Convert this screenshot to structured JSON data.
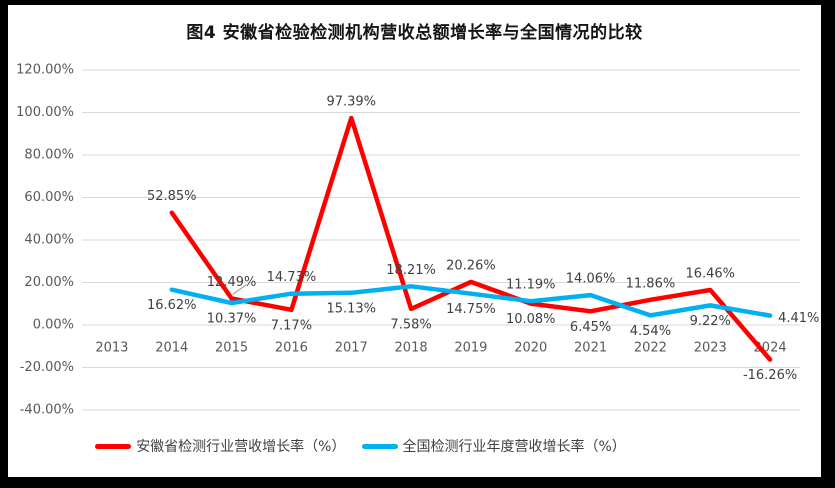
{
  "page": {
    "frame_color": "#000000",
    "canvas_background": "#ffffff"
  },
  "title": "图4 安徽省检验检测机构营收总额增长率与全国情况的比较",
  "chart_data": {
    "type": "line",
    "title": "图4 安徽省检验检测机构营收总额增长率与全国情况的比较",
    "categories": [
      "2013",
      "2014",
      "2015",
      "2016",
      "2017",
      "2018",
      "2019",
      "2020",
      "2021",
      "2022",
      "2023",
      "2024"
    ],
    "series": [
      {
        "name": "安徽省检测行业营收增长率（%）",
        "color": "#FF0000",
        "values": [
          null,
          52.85,
          12.49,
          7.17,
          97.39,
          7.58,
          20.26,
          10.08,
          6.45,
          11.86,
          16.46,
          -16.26
        ],
        "label_placements": [
          null,
          "above",
          "above_leader",
          "below",
          "above",
          "below",
          "above",
          "below",
          "below",
          "above",
          "above",
          "below"
        ]
      },
      {
        "name": "全国检测行业年度营收增长率（%）",
        "color": "#00B0F0",
        "values": [
          null,
          16.62,
          10.37,
          14.73,
          15.13,
          18.21,
          14.75,
          11.19,
          14.06,
          4.54,
          9.22,
          4.41
        ],
        "label_placements": [
          null,
          "below",
          "below",
          "above",
          "below",
          "above",
          "below",
          "above",
          "above",
          "below",
          "below",
          "right"
        ]
      }
    ],
    "y_ticks": [
      {
        "label": "120.00%",
        "value": 120
      },
      {
        "label": "100.00%",
        "value": 100
      },
      {
        "label": "80.00%",
        "value": 80
      },
      {
        "label": "60.00%",
        "value": 60
      },
      {
        "label": "40.00%",
        "value": 40
      },
      {
        "label": "20.00%",
        "value": 20
      },
      {
        "label": "0.00%",
        "value": 0
      },
      {
        "label": "-20.00%",
        "value": -20
      },
      {
        "label": "-40.00%",
        "value": -40
      }
    ],
    "ylim": [
      -40,
      120
    ],
    "grid": true,
    "data_labels": true,
    "legend_position": "bottom",
    "gridline_color": "#D9D9D9",
    "axis_text_color": "#595959",
    "data_label_color": "#404040",
    "leader_line_color": "#A6A6A6"
  },
  "legend": {
    "items": [
      {
        "label": "安徽省检测行业营收增长率（%）",
        "color": "#FF0000"
      },
      {
        "label": "全国检测行业年度营收增长率（%）",
        "color": "#00B0F0"
      }
    ]
  }
}
